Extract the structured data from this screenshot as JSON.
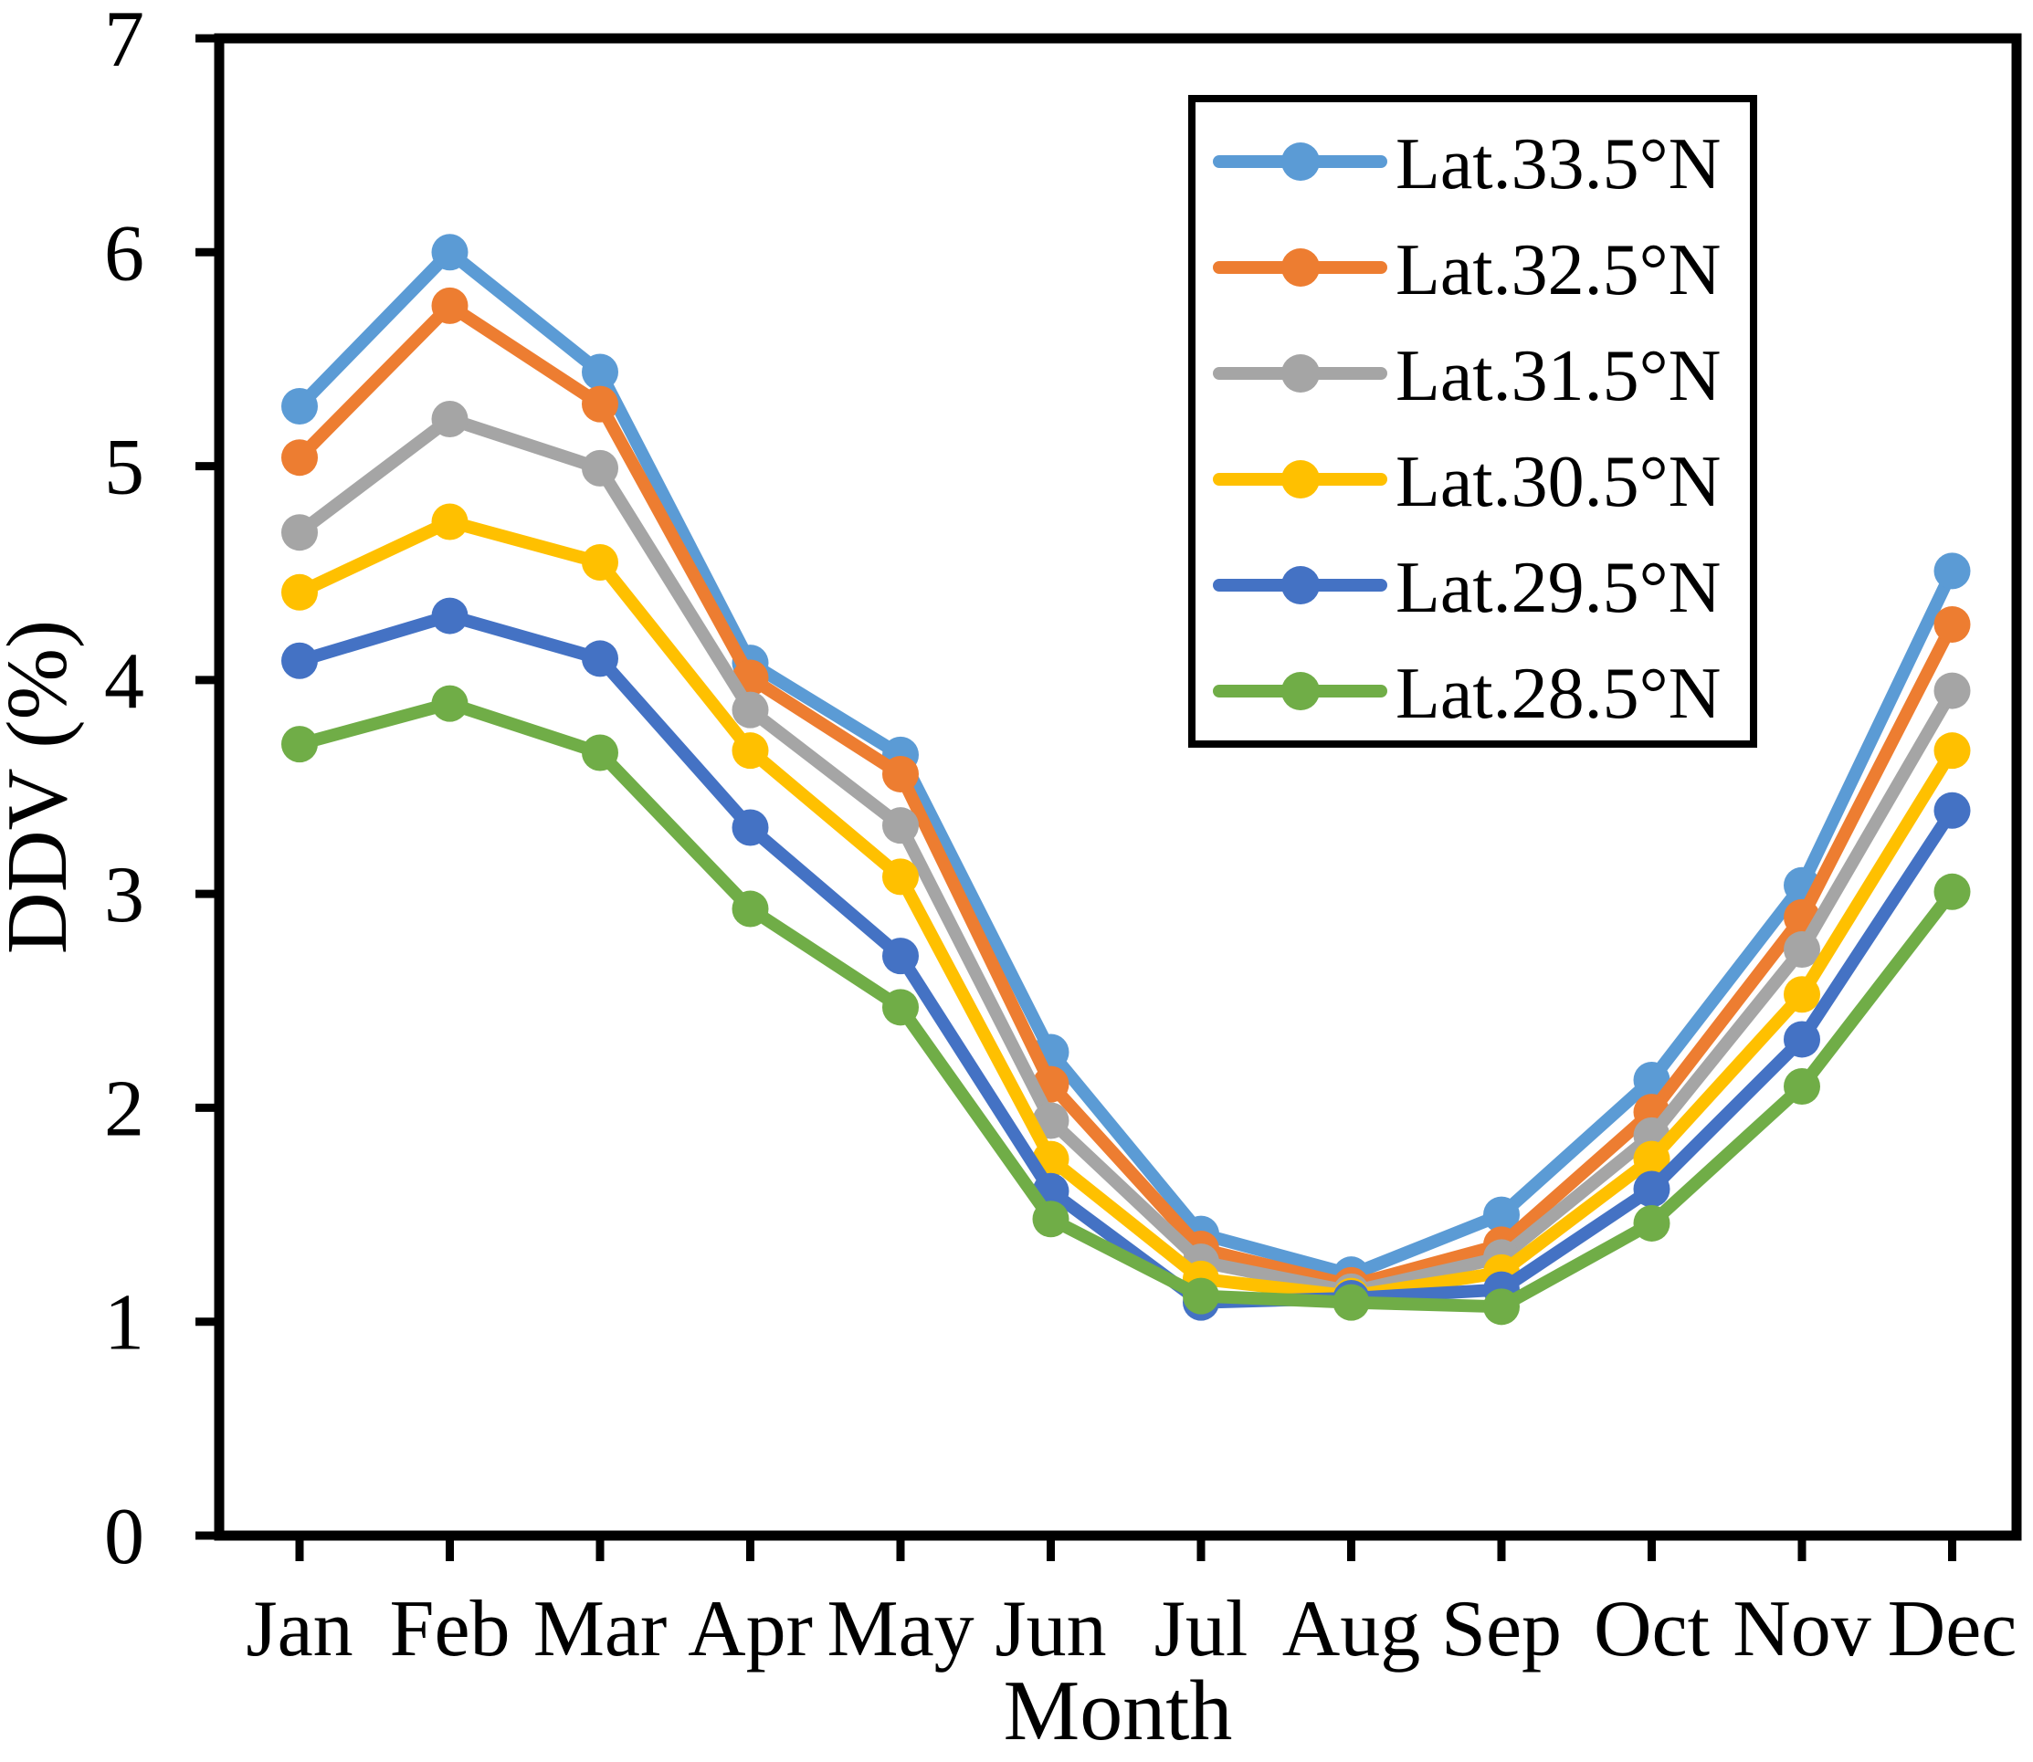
{
  "chart_data": {
    "type": "line",
    "title": "",
    "xlabel": "Month",
    "ylabel": "DDV (%)",
    "ylim": [
      0,
      7
    ],
    "y_ticks": [
      0,
      1,
      2,
      3,
      4,
      5,
      6,
      7
    ],
    "grid": false,
    "legend_position": "upper-right-inside-boxed",
    "background": "#FFFFFF",
    "axis_color": "#000000",
    "categories": [
      "Jan",
      "Feb",
      "Mar",
      "Apr",
      "May",
      "Jun",
      "Jul",
      "Aug",
      "Sep",
      "Oct",
      "Nov",
      "Dec"
    ],
    "series": [
      {
        "name": "Lat.33.5°N",
        "color": "#5B9BD5",
        "values": [
          5.28,
          6.0,
          5.44,
          4.08,
          3.65,
          2.26,
          1.41,
          1.22,
          1.5,
          2.13,
          3.04,
          4.51
        ]
      },
      {
        "name": "Lat.32.5°N",
        "color": "#ED7D31",
        "values": [
          5.04,
          5.75,
          5.29,
          4.01,
          3.56,
          2.11,
          1.34,
          1.17,
          1.36,
          1.98,
          2.89,
          4.26
        ]
      },
      {
        "name": "Lat.31.5°N",
        "color": "#A5A5A5",
        "values": [
          4.69,
          5.22,
          4.99,
          3.86,
          3.32,
          1.94,
          1.28,
          1.14,
          1.3,
          1.87,
          2.74,
          3.95
        ]
      },
      {
        "name": "Lat.30.5°N",
        "color": "#FFC000",
        "values": [
          4.41,
          4.74,
          4.55,
          3.67,
          3.08,
          1.76,
          1.2,
          1.12,
          1.23,
          1.76,
          2.53,
          3.67
        ]
      },
      {
        "name": "Lat.29.5°N",
        "color": "#4472C4",
        "values": [
          4.09,
          4.3,
          4.1,
          3.31,
          2.71,
          1.61,
          1.09,
          1.11,
          1.15,
          1.62,
          2.32,
          3.39
        ]
      },
      {
        "name": "Lat.28.5°N",
        "color": "#70AD47",
        "values": [
          3.7,
          3.89,
          3.66,
          2.93,
          2.47,
          1.48,
          1.12,
          1.09,
          1.07,
          1.46,
          2.1,
          3.01
        ]
      }
    ]
  }
}
